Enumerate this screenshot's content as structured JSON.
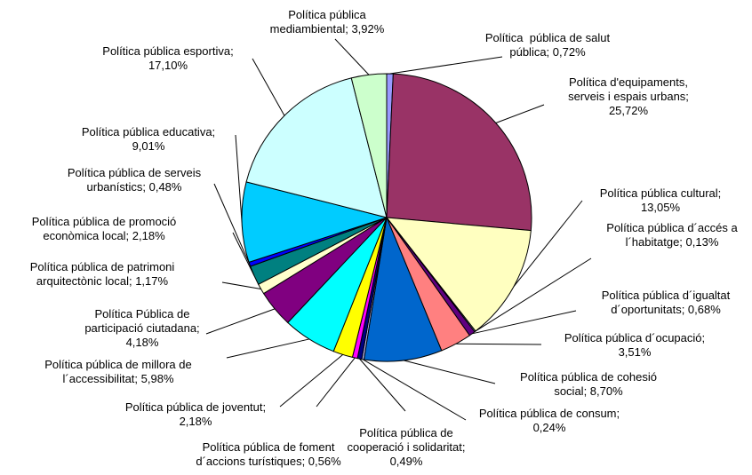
{
  "chart_data": {
    "type": "pie",
    "title": "",
    "series": [
      {
        "values_percent": [
          0.72,
          25.72,
          13.05,
          0.13,
          0.68,
          3.51,
          8.7,
          0.24,
          0.49,
          0.56,
          2.18,
          5.98,
          4.18,
          1.17,
          2.18,
          0.48,
          9.01,
          17.1,
          3.92
        ]
      }
    ],
    "slices": [
      {
        "label_lines": [
          "Política  pública de salut",
          "pública; 0,72%"
        ],
        "value": 0.72,
        "color": "#9999ff"
      },
      {
        "label_lines": [
          "Política d'equipaments,",
          "serveis i espais urbans;",
          "25,72%"
        ],
        "value": 25.72,
        "color": "#993366"
      },
      {
        "label_lines": [
          "Política pública cultural;",
          "13,05%"
        ],
        "value": 13.05,
        "color": "#ffffc0"
      },
      {
        "label_lines": [
          "Política pública d´accés a",
          "l´habitatge; 0,13%"
        ],
        "value": 0.13,
        "color": "#a0e0e0"
      },
      {
        "label_lines": [
          "Política pública d´igualtat",
          "d´oportunitats; 0,68%"
        ],
        "value": 0.68,
        "color": "#600080"
      },
      {
        "label_lines": [
          "Política pública d´ocupació;",
          "3,51%"
        ],
        "value": 3.51,
        "color": "#ff8080"
      },
      {
        "label_lines": [
          "Política pública de cohesió",
          "social; 8,70%"
        ],
        "value": 8.7,
        "color": "#0066cc"
      },
      {
        "label_lines": [
          "Política pública de consum;",
          "0,24%"
        ],
        "value": 0.24,
        "color": "#c0c0ff"
      },
      {
        "label_lines": [
          "Política pública de",
          "cooperació i solidaritat;",
          "0,49%"
        ],
        "value": 0.49,
        "color": "#000080"
      },
      {
        "label_lines": [
          "Política pública de foment",
          "d´accions turístiques; 0,56%"
        ],
        "value": 0.56,
        "color": "#ff00ff"
      },
      {
        "label_lines": [
          "Política pública de joventut;",
          "2,18%"
        ],
        "value": 2.18,
        "color": "#ffff00"
      },
      {
        "label_lines": [
          "Política pública de millora de",
          "l´accessibilitat; 5,98%"
        ],
        "value": 5.98,
        "color": "#00ffff"
      },
      {
        "label_lines": [
          "Política Pública de",
          "participació ciutadana;",
          "4,18%"
        ],
        "value": 4.18,
        "color": "#800080"
      },
      {
        "label_lines": [
          "Política pública de patrimoni",
          "arquitectònic local; 1,17%"
        ],
        "value": 1.17,
        "color": "#ffffcc"
      },
      {
        "label_lines": [
          "Política pública de promoció",
          "econòmica local; 2,18%"
        ],
        "value": 2.18,
        "color": "#008080"
      },
      {
        "label_lines": [
          "Política pública de serveis",
          "urbanístics; 0,48%"
        ],
        "value": 0.48,
        "color": "#0000ff"
      },
      {
        "label_lines": [
          "Política pública educativa;",
          "9,01%"
        ],
        "value": 9.01,
        "color": "#00ccff"
      },
      {
        "label_lines": [
          "Política pública esportiva;",
          "17,10%"
        ],
        "value": 17.1,
        "color": "#ccffff"
      },
      {
        "label_lines": [
          "Política pública",
          "mediambiental; 3,92%"
        ],
        "value": 3.92,
        "color": "#ccffcc"
      }
    ],
    "legend": "none",
    "grid": false
  }
}
